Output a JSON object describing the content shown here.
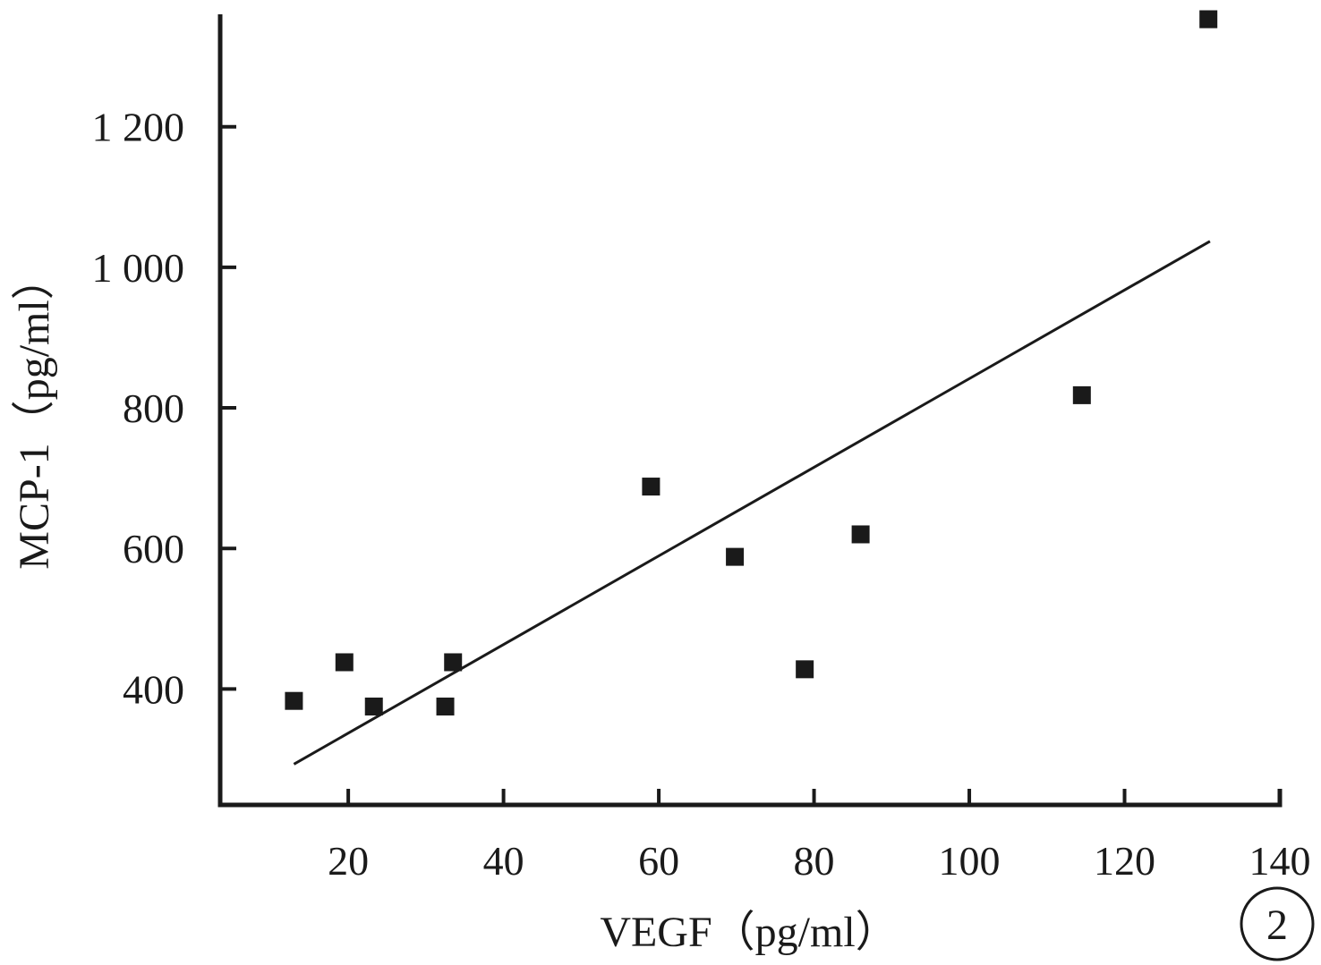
{
  "chart_data": {
    "type": "scatter",
    "xlabel": "VEGF（pg/ml）",
    "ylabel": "MCP-1（pg/ml）",
    "x_ticks": [
      20,
      40,
      60,
      80,
      100,
      120,
      140
    ],
    "x_tick_labels": [
      "20",
      "40",
      "60",
      "80",
      "100",
      "120",
      "140"
    ],
    "y_ticks": [
      400,
      600,
      800,
      1000,
      1200
    ],
    "y_tick_labels": [
      "400",
      "600",
      "800",
      "1 000",
      "1 200"
    ],
    "xlim": [
      3.5,
      140
    ],
    "ylim": [
      235,
      1360
    ],
    "grid": false,
    "legend": "none",
    "points": [
      {
        "x": 13,
        "y": 383
      },
      {
        "x": 19.5,
        "y": 438
      },
      {
        "x": 23.3,
        "y": 375
      },
      {
        "x": 32.5,
        "y": 375
      },
      {
        "x": 33.5,
        "y": 438
      },
      {
        "x": 59,
        "y": 688
      },
      {
        "x": 69.8,
        "y": 588
      },
      {
        "x": 78.8,
        "y": 428
      },
      {
        "x": 86,
        "y": 620
      },
      {
        "x": 114.5,
        "y": 818
      },
      {
        "x": 130.8,
        "y": 1353
      }
    ],
    "trendline": {
      "x": [
        13,
        131
      ],
      "y": [
        293,
        1037
      ]
    },
    "panel_label": "2",
    "colors": {
      "ink": "#1a1a1a",
      "background": "#ffffff"
    }
  }
}
